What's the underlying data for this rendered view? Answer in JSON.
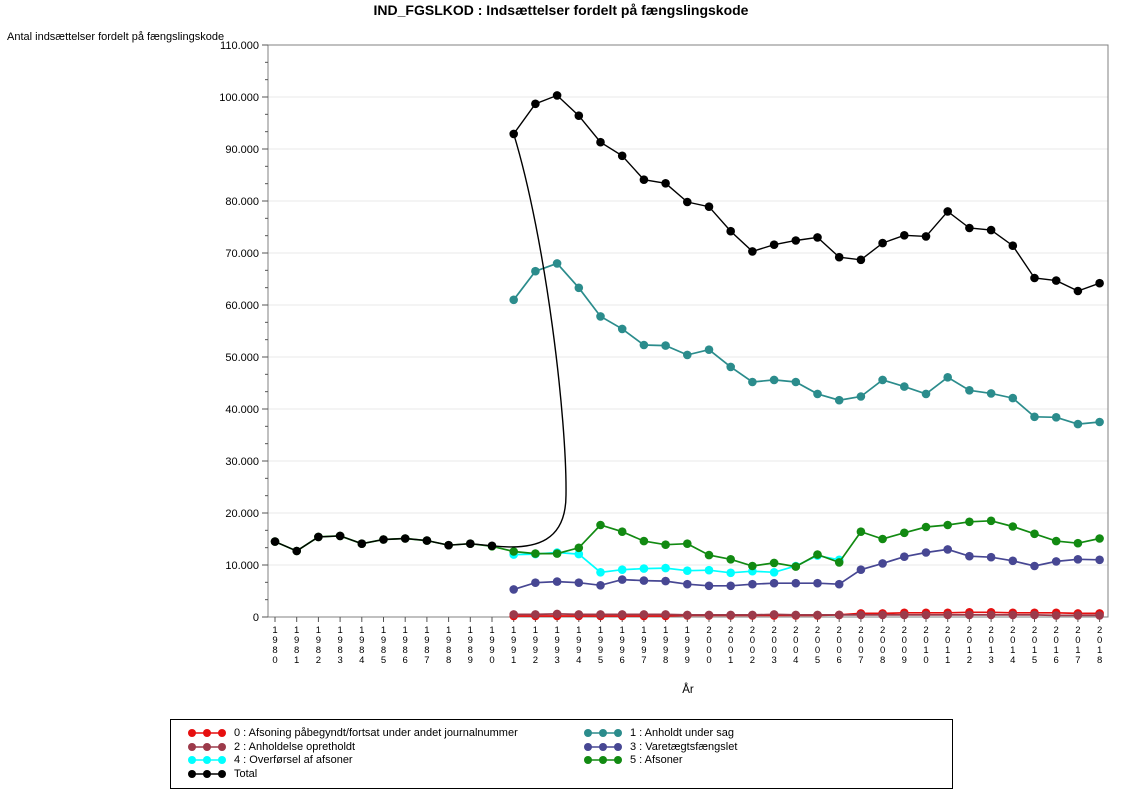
{
  "chart_data": {
    "type": "line",
    "title": "IND_FGSLKOD : Indsættelser fordelt på fængslingskode",
    "xlabel": "År",
    "ylabel": "Antal indsættelser fordelt på fængslingskode",
    "ylim": [
      0,
      110000
    ],
    "ytick_interval": 10000,
    "ytick_labels": [
      "0",
      "10.000",
      "20.000",
      "30.000",
      "40.000",
      "50.000",
      "60.000",
      "70.000",
      "80.000",
      "90.000",
      "100.000",
      "110.000"
    ],
    "grid": true,
    "legend_position": "bottom",
    "x": [
      "1980",
      "1981",
      "1982",
      "1983",
      "1984",
      "1985",
      "1986",
      "1987",
      "1988",
      "1989",
      "1990",
      "1991",
      "1992",
      "1993",
      "1994",
      "1995",
      "1996",
      "1997",
      "1998",
      "1999",
      "2000",
      "2001",
      "2002",
      "2003",
      "2004",
      "2005",
      "2006",
      "2007",
      "2008",
      "2009",
      "2010",
      "2011",
      "2012",
      "2013",
      "2014",
      "2015",
      "2016",
      "2017",
      "2018"
    ],
    "series": [
      {
        "name": "0 : Afsoning påbegyndt/fortsat under andet journalnummer",
        "color": "#e60f0f",
        "values": [
          null,
          null,
          null,
          null,
          null,
          null,
          null,
          null,
          null,
          null,
          null,
          200,
          200,
          200,
          200,
          200,
          200,
          200,
          200,
          300,
          300,
          300,
          300,
          300,
          300,
          300,
          400,
          700,
          700,
          800,
          800,
          800,
          900,
          900,
          800,
          800,
          800,
          700,
          700
        ]
      },
      {
        "name": "1 : Anholdt under sag",
        "color": "#2b8c8c",
        "values": [
          null,
          null,
          null,
          null,
          null,
          null,
          null,
          null,
          null,
          null,
          null,
          61000,
          66500,
          68000,
          63300,
          57800,
          55400,
          52300,
          52200,
          50400,
          51400,
          48100,
          45200,
          45600,
          45200,
          42900,
          41700,
          42400,
          45600,
          44300,
          42900,
          46100,
          43600,
          43000,
          42100,
          38500,
          38400,
          37100,
          37500
        ]
      },
      {
        "name": "2 : Anholdelse opretholdt",
        "color": "#9c3a4a",
        "values": [
          null,
          null,
          null,
          null,
          null,
          null,
          null,
          null,
          null,
          null,
          null,
          500,
          500,
          600,
          500,
          500,
          500,
          500,
          500,
          400,
          400,
          400,
          400,
          500,
          400,
          400,
          400,
          400,
          400,
          400,
          400,
          400,
          400,
          400,
          400,
          400,
          300,
          300,
          300
        ]
      },
      {
        "name": "3 : Varetægtsfængslet",
        "color": "#474793",
        "values": [
          null,
          null,
          null,
          null,
          null,
          null,
          null,
          null,
          null,
          null,
          null,
          5300,
          6600,
          6800,
          6600,
          6100,
          7200,
          7000,
          6900,
          6300,
          6000,
          6000,
          6300,
          6500,
          6500,
          6500,
          6300,
          9100,
          10300,
          11600,
          12400,
          13000,
          11700,
          11500,
          10800,
          9800,
          10700,
          11100,
          11000
        ]
      },
      {
        "name": "4 : Overførsel af afsoner",
        "color": "#00ffff",
        "values": [
          null,
          null,
          null,
          null,
          null,
          null,
          null,
          null,
          null,
          null,
          null,
          12000,
          12100,
          12400,
          12100,
          8600,
          9100,
          9300,
          9400,
          8900,
          9000,
          8500,
          8800,
          8600,
          9800,
          11800,
          11000,
          null,
          null,
          null,
          null,
          null,
          null,
          null,
          null,
          null,
          null,
          null,
          null
        ]
      },
      {
        "name": "5 : Afsoner",
        "color": "#128a12",
        "values": [
          14500,
          12700,
          15400,
          15600,
          14100,
          14900,
          15100,
          14700,
          13800,
          14100,
          13600,
          12600,
          12200,
          12200,
          13300,
          17700,
          16400,
          14600,
          13900,
          14100,
          11900,
          11100,
          9800,
          10400,
          9700,
          12000,
          10500,
          16400,
          15000,
          16200,
          17300,
          17700,
          18300,
          18500,
          17400,
          16000,
          14600,
          14200,
          15100
        ]
      },
      {
        "name": "Total",
        "color": "#000000",
        "values": [
          14500,
          12700,
          15400,
          15600,
          14100,
          14900,
          15100,
          14700,
          13800,
          14100,
          13700,
          92900,
          98700,
          100300,
          96400,
          91300,
          88700,
          84100,
          83400,
          79800,
          78900,
          74200,
          70300,
          71600,
          72400,
          73000,
          69200,
          68700,
          71900,
          73400,
          73200,
          78000,
          74800,
          74400,
          71400,
          65200,
          64700,
          62700,
          64200
        ]
      }
    ]
  }
}
